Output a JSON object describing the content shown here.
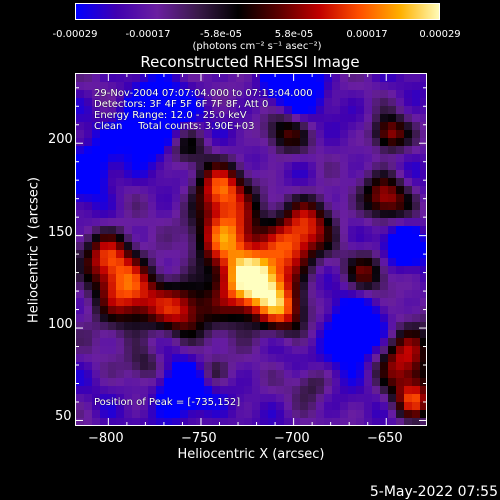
{
  "colorbar": {
    "ticks": [
      "-0.00029",
      "-0.00017",
      "-5.8e-05",
      "5.8e-05",
      "0.00017",
      "0.00029"
    ],
    "unit_label": "(photons cm⁻² s⁻¹ asec⁻²)"
  },
  "chart_data": {
    "type": "heatmap",
    "title": "Reconstructed RHESSI Image",
    "xlabel": "Heliocentric X (arcsec)",
    "ylabel": "Heliocentric Y (arcsec)",
    "xlim": [
      -818,
      -628
    ],
    "ylim": [
      47,
      238
    ],
    "x_ticks": [
      -800,
      -750,
      -700,
      -650
    ],
    "y_ticks": [
      50,
      100,
      150,
      200
    ],
    "x_tick_labels": [
      "−800",
      "−750",
      "−700",
      "−650"
    ],
    "y_tick_labels": [
      "50",
      "100",
      "150",
      "200"
    ],
    "color_range": [
      -0.00029,
      0.00029
    ],
    "colormap": [
      "#0000ff",
      "#4000b0",
      "#6a1fa0",
      "#3a1a4a",
      "#000000",
      "#5a0000",
      "#c00000",
      "#ff5000",
      "#ffb000",
      "#ffffc0"
    ],
    "peak_position": [
      -735,
      152
    ],
    "annotations": [
      "29-Nov-2004 07:07:04.000 to 07:13:04.000",
      "Detectors: 3F 4F 5F 6F 7F 8F, Att 0",
      "Energy Range: 12.0 - 25.0 keV",
      "Clean     Total counts: 3.90E+03"
    ],
    "peak_label": "Position of Peak = [-735,152]"
  },
  "date_stamp": "5-May-2022 07:55"
}
